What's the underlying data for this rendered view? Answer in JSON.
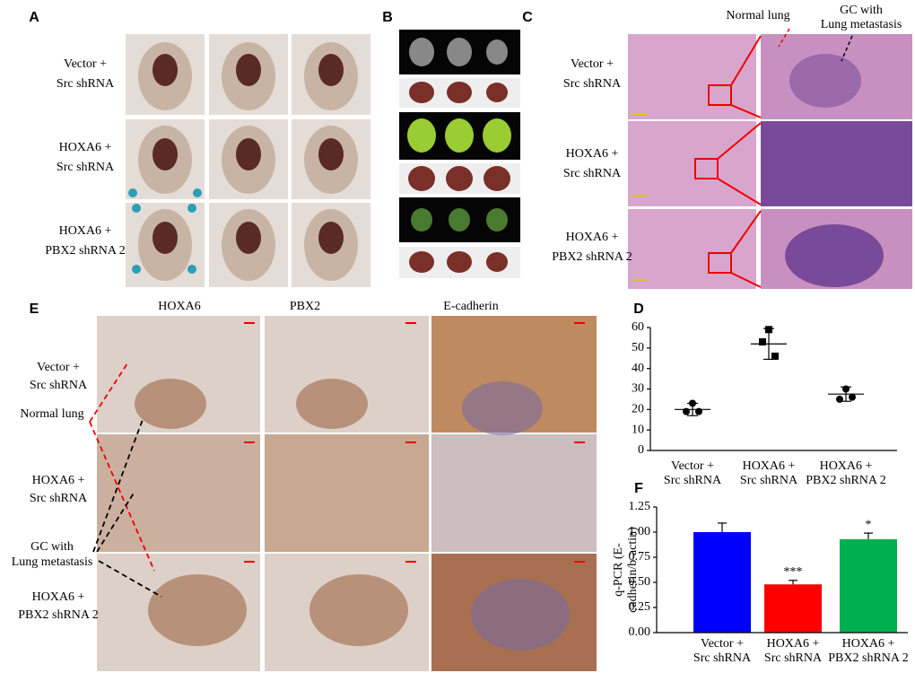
{
  "panel_labels": {
    "a": "A",
    "b": "B",
    "c": "C",
    "d": "D",
    "e": "E",
    "f": "F"
  },
  "panel_a": {
    "row_labels": [
      [
        "Vector +",
        "Src shRNA"
      ],
      [
        "HOXA6 +",
        "Src shRNA"
      ],
      [
        "HOXA6 +",
        "PBX2 shRNA 2"
      ]
    ]
  },
  "panel_c": {
    "row_labels": [
      [
        "Vector +",
        "Src shRNA"
      ],
      [
        "HOXA6 +",
        "Src shRNA"
      ],
      [
        "HOXA6 +",
        "PBX2 shRNA 2"
      ]
    ],
    "normal_lung": "Normal lung",
    "gc": [
      "GC with",
      "Lung metastasis"
    ]
  },
  "panel_e": {
    "column_headers": [
      "HOXA6",
      "PBX2",
      "E-cadherin"
    ],
    "row_labels": [
      [
        "Vector +",
        "Src shRNA"
      ],
      [
        "HOXA6 +",
        "Src shRNA"
      ],
      [
        "HOXA6 +",
        "PBX2 shRNA 2"
      ]
    ],
    "normal_lung": "Normal lung",
    "gc": [
      "GC with",
      "Lung metastasis"
    ]
  },
  "chart_data": [
    {
      "type": "dot",
      "categories": [
        [
          "Vector +",
          "Src shRNA"
        ],
        [
          "HOXA6 +",
          "Src shRNA"
        ],
        [
          "HOXA6 +",
          "PBX2 shRNA 2"
        ]
      ],
      "values": [
        20,
        52,
        27.5
      ],
      "errors": [
        3,
        7.5,
        3.5
      ],
      "points": [
        [
          23,
          19,
          19
        ],
        [
          59,
          53,
          46
        ],
        [
          30,
          25,
          26
        ]
      ],
      "ylim": [
        0,
        60
      ],
      "yticks": [
        0,
        10,
        20,
        30,
        40,
        50,
        60
      ]
    },
    {
      "type": "bar",
      "categories": [
        [
          "Vector +",
          "Src shRNA"
        ],
        [
          "HOXA6 +",
          "Src shRNA"
        ],
        [
          "HOXA6 +",
          "PBX2 shRNA 2"
        ]
      ],
      "values": [
        1.0,
        0.48,
        0.93
      ],
      "errors": [
        0.09,
        0.04,
        0.06
      ],
      "colors": [
        "#0000ff",
        "#ff0000",
        "#00b050"
      ],
      "ylabel": [
        "q-PCR (E-",
        "cadherin/b-actin)"
      ],
      "significance": [
        {
          "index": 1,
          "text": "***"
        },
        {
          "index": 2,
          "text": "*"
        }
      ],
      "ylim": [
        0,
        1.25
      ],
      "yticks": [
        {
          "value": 0,
          "label": "0.00"
        },
        {
          "value": 0.25,
          "label": "0.25"
        },
        {
          "value": 0.5,
          "label": "0.50"
        },
        {
          "value": 0.75,
          "label": "0.75"
        },
        {
          "value": 1.0,
          "label": "1.00"
        },
        {
          "value": 1.25,
          "label": "1.25"
        }
      ]
    }
  ]
}
